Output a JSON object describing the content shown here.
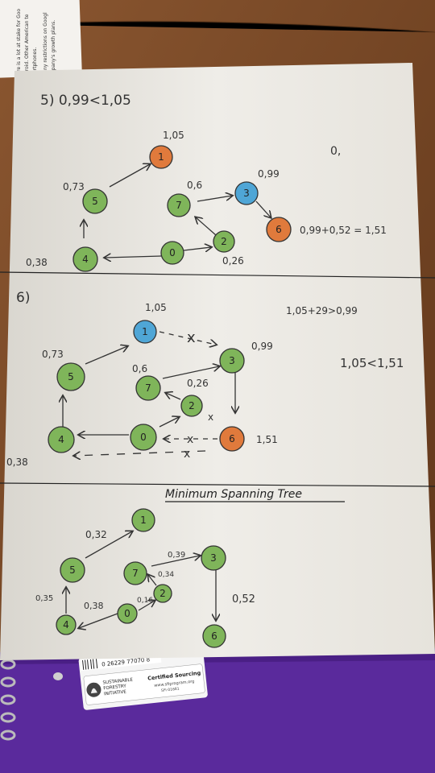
{
  "top_card": {
    "lines": [
      "There is a lot at stake for Goo",
      "Android. Other American te",
      "smartphones.",
      "So any restrictions on Googl",
      "company's growth plans."
    ]
  },
  "section5": {
    "title": "5)   0,99<1,05",
    "corner": "0,",
    "sum": "0,99+0,52 = 1,51",
    "nodes": [
      {
        "id": "5",
        "color": "#7fb55a"
      },
      {
        "id": "1",
        "color": "#e07a3c"
      },
      {
        "id": "7",
        "color": "#7fb55a"
      },
      {
        "id": "3",
        "color": "#4fa6d6"
      },
      {
        "id": "6",
        "color": "#e07a3c"
      },
      {
        "id": "4",
        "color": "#7fb55a"
      },
      {
        "id": "0",
        "color": "#7fb55a"
      },
      {
        "id": "2",
        "color": "#7fb55a"
      }
    ],
    "weights": {
      "n1": "1,05",
      "n5": "0,73",
      "n7": "0,6",
      "n3": "0,99",
      "n4": "0,38",
      "n2": "0,26"
    }
  },
  "section6": {
    "title": "6)",
    "cond1": "1,05+29>0,99",
    "cond2": "1,05<1,51",
    "cross": "x",
    "nodes": [
      {
        "id": "1",
        "color": "#4fa6d6"
      },
      {
        "id": "5",
        "color": "#7fb55a"
      },
      {
        "id": "7",
        "color": "#7fb55a"
      },
      {
        "id": "3",
        "color": "#7fb55a"
      },
      {
        "id": "2",
        "color": "#7fb55a"
      },
      {
        "id": "4",
        "color": "#7fb55a"
      },
      {
        "id": "0",
        "color": "#7fb55a"
      },
      {
        "id": "6",
        "color": "#e07a3c"
      }
    ],
    "weights": {
      "n1": "1,05",
      "n5": "0,73",
      "n7": "0,6",
      "n3": "0,99",
      "n2": "0,26",
      "n6": "1,51",
      "n4": "0,38"
    }
  },
  "mst": {
    "title": "Minimum Spanning Tree",
    "nodes": [
      {
        "id": "1",
        "color": "#7fb55a"
      },
      {
        "id": "5",
        "color": "#7fb55a"
      },
      {
        "id": "7",
        "color": "#7fb55a"
      },
      {
        "id": "3",
        "color": "#7fb55a"
      },
      {
        "id": "2",
        "color": "#7fb55a"
      },
      {
        "id": "0",
        "color": "#7fb55a"
      },
      {
        "id": "4",
        "color": "#7fb55a"
      },
      {
        "id": "6",
        "color": "#7fb55a"
      }
    ],
    "weights": {
      "e51": "0,32",
      "e73": "0,39",
      "e27": "0,34",
      "e02": "0,16",
      "e04": "0,38",
      "e45": "0,35",
      "e36": "0,52"
    }
  },
  "notebook": {
    "barcode_digits": "0 26229 77070 8",
    "sfi_line1": "SUSTAINABLE",
    "sfi_line2": "FORESTRY",
    "sfi_line3": "INITIATIVE",
    "certified": "Certified Sourcing",
    "url": "www.sfiprogram.org",
    "code": "SFI-01681"
  },
  "colors": {
    "green_node": "#7fb55a",
    "orange_node": "#e07a3c",
    "blue_node": "#4fa6d6",
    "notebook_purple": "#5a2a9c",
    "desk": "#7a4a26"
  }
}
